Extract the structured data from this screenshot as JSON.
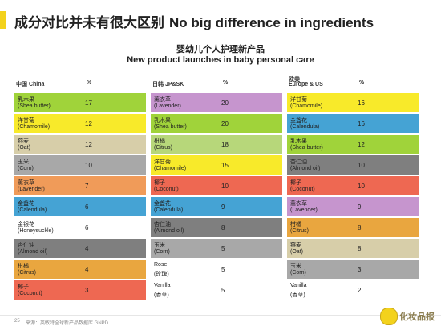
{
  "colors": {
    "accent": "#f3d21c",
    "palette": {
      "green": "#a0d33a",
      "yellow": "#f8ea2a",
      "tan": "#d7cea9",
      "gray": "#a8a8a8",
      "orange": "#f09b59",
      "blue": "#45a3d4",
      "white": "#ffffff",
      "dark_gray": "#7f7f7f",
      "amber": "#e9a63f",
      "red": "#ee6852",
      "purple": "#c695ce",
      "light_green": "#b7d77a"
    }
  },
  "heading": {
    "zh": "成分对比并未有很大区别",
    "en": "No big difference in ingredients"
  },
  "subtitle": {
    "zh": "婴幼儿个人护理新产品",
    "en": "New product launches in baby personal care"
  },
  "groups": [
    {
      "header_line1": "中国 China",
      "header_line2": "",
      "pct": "%",
      "rows": [
        {
          "zh": "乳木果",
          "en": "(Shea butter)",
          "val": "17",
          "color": "green"
        },
        {
          "zh": "洋甘菊",
          "en": "(Chamomile)",
          "val": "12",
          "color": "yellow"
        },
        {
          "zh": "燕麦",
          "en": "(Oat)",
          "val": "12",
          "color": "tan"
        },
        {
          "zh": "玉米",
          "en": "(Corn)",
          "val": "10",
          "color": "gray"
        },
        {
          "zh": "薰衣草",
          "en": "(Lavender)",
          "val": "7",
          "color": "orange"
        },
        {
          "zh": "金盏花",
          "en": "(Calendula)",
          "val": "6",
          "color": "blue"
        },
        {
          "zh": "金银花",
          "en": "(Honeysuckle)",
          "val": "6",
          "color": "white"
        },
        {
          "zh": "杏仁油",
          "en": "(Almond oil)",
          "val": "4",
          "color": "dark_gray"
        },
        {
          "zh": "柑橘",
          "en": "(Citrus)",
          "val": "4",
          "color": "amber"
        },
        {
          "zh": "椰子",
          "en": "(Coconut)",
          "val": "3",
          "color": "red"
        }
      ]
    },
    {
      "header_line1": "日韩 JP&SK",
      "header_line2": "",
      "pct": "%",
      "rows": [
        {
          "zh": "薰衣草",
          "en": "(Lavender)",
          "val": "20",
          "color": "purple"
        },
        {
          "zh": "乳木果",
          "en": "(Shea butter)",
          "val": "20",
          "color": "green"
        },
        {
          "zh": "柑橘",
          "en": "(Citrus)",
          "val": "18",
          "color": "light_green"
        },
        {
          "zh": "洋甘菊",
          "en": "(Chamomile)",
          "val": "15",
          "color": "yellow"
        },
        {
          "zh": "椰子",
          "en": "(Coconut)",
          "val": "10",
          "color": "red"
        },
        {
          "zh": "金盏花",
          "en": "(Calendula)",
          "val": "9",
          "color": "blue"
        },
        {
          "zh": "杏仁油",
          "en": "(Almond oil)",
          "val": "8",
          "color": "dark_gray"
        },
        {
          "zh": "玉米",
          "en": "(Corn)",
          "val": "5",
          "color": "gray"
        },
        {
          "zh": "Rose",
          "en": "(玫瑰)",
          "val": "5",
          "color": "white"
        },
        {
          "zh": "Vanilla",
          "en": "(香草)",
          "val": "5",
          "color": "white"
        }
      ]
    },
    {
      "header_line1": "欧美",
      "header_line2": "Europe & US",
      "pct": "%",
      "rows": [
        {
          "zh": "洋甘菊",
          "en": "(Chamomile)",
          "val": "16",
          "color": "yellow"
        },
        {
          "zh": "金盏花",
          "en": "(Calendula)",
          "val": "16",
          "color": "blue"
        },
        {
          "zh": "乳木果",
          "en": "(Shea butter)",
          "val": "12",
          "color": "green"
        },
        {
          "zh": "杏仁油",
          "en": "(Almond oil)",
          "val": "10",
          "color": "dark_gray"
        },
        {
          "zh": "椰子",
          "en": "(Coconut)",
          "val": "10",
          "color": "red"
        },
        {
          "zh": "薰衣草",
          "en": "(Lavender)",
          "val": "9",
          "color": "purple"
        },
        {
          "zh": "柑橘",
          "en": "(Citrus)",
          "val": "8",
          "color": "amber"
        },
        {
          "zh": "燕麦",
          "en": "(Oat)",
          "val": "8",
          "color": "tan"
        },
        {
          "zh": "玉米",
          "en": "(Corn)",
          "val": "3",
          "color": "gray"
        },
        {
          "zh": "Vanilla",
          "en": "(香草)",
          "val": "2",
          "color": "white"
        }
      ]
    }
  ],
  "footer": {
    "page": "25",
    "source": "来源：英敏特全球新产品数据库 GNPD"
  },
  "watermark": {
    "logo_icon": "brand-logo-icon",
    "text": "化妆品报"
  }
}
